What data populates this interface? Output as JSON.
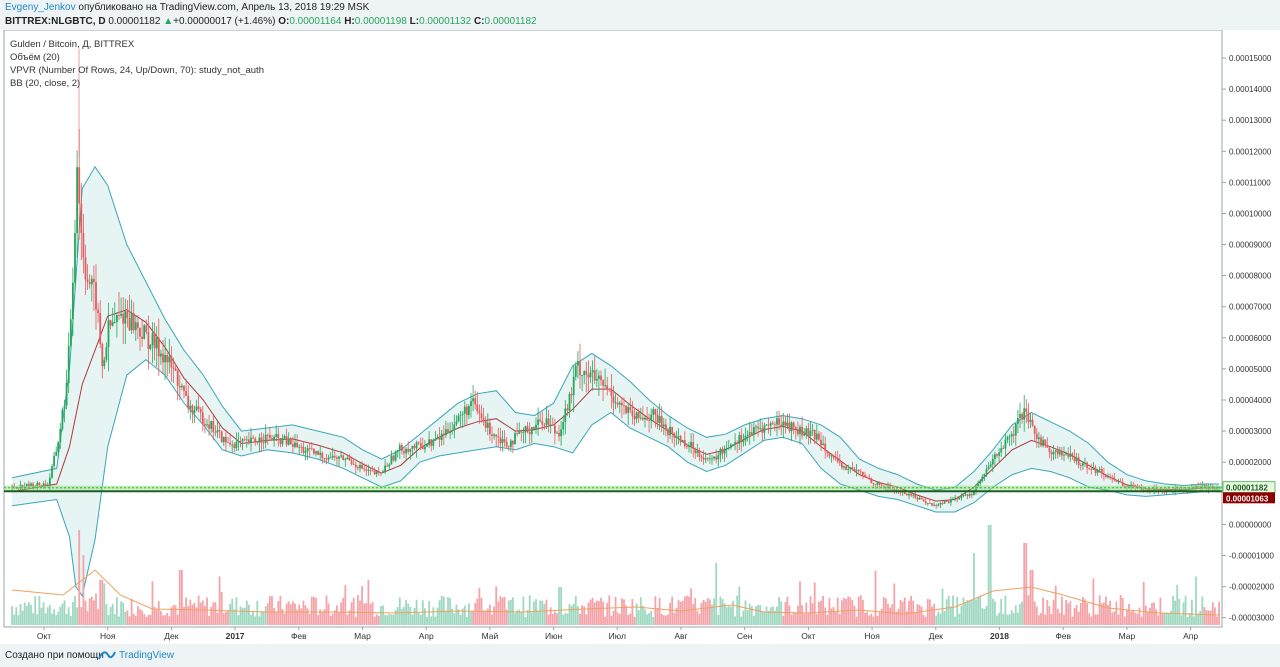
{
  "header": {
    "author": "Evgeny_Jenkov",
    "published_text": " опубликовано на TradingView.com, Апрель 13, 2018 19:29 MSK",
    "symbol": "BITTREX:NLGBTC, D",
    "last_price": "0.00001182",
    "change": "+0.00000017 (+1.46%)",
    "open_label": "O:",
    "open_value": "0.00001164",
    "high_label": "H:",
    "high_value": "0.00001198",
    "low_label": "L:",
    "low_value": "0.00001132",
    "close_label": "C:",
    "close_value": "0.00001182"
  },
  "legend": {
    "title": "Gulden / Bitcoin, Д, BITTREX",
    "volume": "Объём (20)",
    "vpvr": "VPVR (Number Of Rows, 24, Up/Down, 70): study_not_auth",
    "bb": "BB (20, close, 2)"
  },
  "footer": {
    "made_with": "Создано при помощи",
    "brand": "TradingView"
  },
  "colors": {
    "up": "#26a65b",
    "down": "#e55b5b",
    "bb_band": "#3aa6b9",
    "bb_mid": "#b03a3a",
    "bb_fill": "#e6f4f4",
    "vol_up": "#9fd8c0",
    "vol_down": "#f4a3a8",
    "vol_ma": "#f0a060",
    "support": "#2a7d2a",
    "price_tag_last": "#e8f8e0",
    "price_tag_low": "#8b0000"
  },
  "chart_data": {
    "type": "candlestick",
    "y_ticks": [
      "0.00015000",
      "0.00014000",
      "0.00013000",
      "0.00012000",
      "0.00011000",
      "0.00010000",
      "0.00009000",
      "0.00008000",
      "0.00007000",
      "0.00006000",
      "0.00005000",
      "0.00004000",
      "0.00003000",
      "0.00002000",
      "0.00000000",
      "-0.00001000",
      "-0.00002000",
      "-0.00003000"
    ],
    "y_tick_values": [
      15,
      14,
      13,
      12,
      11,
      10,
      9,
      8,
      7,
      6,
      5,
      4,
      3,
      2,
      0,
      -1,
      -2,
      -3
    ],
    "ylim": [
      -3.3,
      15.9
    ],
    "y_unit_note": "values in 1e-5 BTC",
    "x_ticks": [
      {
        "label": "Окт",
        "month": 0,
        "bold": false
      },
      {
        "label": "Ноя",
        "month": 1,
        "bold": false
      },
      {
        "label": "Дек",
        "month": 2,
        "bold": false
      },
      {
        "label": "2017",
        "month": 3,
        "bold": true
      },
      {
        "label": "Фев",
        "month": 4,
        "bold": false
      },
      {
        "label": "Мар",
        "month": 5,
        "bold": false
      },
      {
        "label": "Апр",
        "month": 6,
        "bold": false
      },
      {
        "label": "Май",
        "month": 7,
        "bold": false
      },
      {
        "label": "Июн",
        "month": 8,
        "bold": false
      },
      {
        "label": "Июл",
        "month": 9,
        "bold": false
      },
      {
        "label": "Авг",
        "month": 10,
        "bold": false
      },
      {
        "label": "Сен",
        "month": 11,
        "bold": false
      },
      {
        "label": "Окт",
        "month": 12,
        "bold": false
      },
      {
        "label": "Ноя",
        "month": 13,
        "bold": false
      },
      {
        "label": "Дек",
        "month": 14,
        "bold": false
      },
      {
        "label": "2018",
        "month": 15,
        "bold": true
      },
      {
        "label": "Фев",
        "month": 16,
        "bold": false
      },
      {
        "label": "Мар",
        "month": 17,
        "bold": false
      },
      {
        "label": "Апр",
        "month": 18,
        "bold": false
      }
    ],
    "price_path": [
      [
        -0.5,
        1.2
      ],
      [
        0.1,
        1.3
      ],
      [
        0.25,
        2.6
      ],
      [
        0.4,
        4.6
      ],
      [
        0.5,
        8.5
      ],
      [
        0.55,
        11.8
      ],
      [
        0.62,
        9.3
      ],
      [
        0.7,
        8.0
      ],
      [
        0.85,
        7.2
      ],
      [
        0.95,
        5.0
      ],
      [
        1.05,
        6.3
      ],
      [
        1.3,
        6.8
      ],
      [
        1.6,
        6.1
      ],
      [
        1.9,
        5.5
      ],
      [
        2.1,
        4.8
      ],
      [
        2.3,
        3.8
      ],
      [
        2.6,
        3.3
      ],
      [
        2.9,
        2.6
      ],
      [
        3.2,
        2.6
      ],
      [
        3.5,
        2.8
      ],
      [
        3.8,
        2.7
      ],
      [
        4.1,
        2.4
      ],
      [
        4.4,
        2.2
      ],
      [
        4.8,
        2.1
      ],
      [
        5.1,
        1.7
      ],
      [
        5.3,
        1.6
      ],
      [
        5.6,
        2.4
      ],
      [
        5.9,
        2.5
      ],
      [
        6.2,
        2.7
      ],
      [
        6.5,
        3.3
      ],
      [
        6.75,
        3.9
      ],
      [
        7.0,
        3.1
      ],
      [
        7.3,
        2.6
      ],
      [
        7.6,
        3.0
      ],
      [
        7.9,
        3.4
      ],
      [
        8.1,
        2.9
      ],
      [
        8.3,
        4.1
      ],
      [
        8.4,
        5.1
      ],
      [
        8.6,
        4.8
      ],
      [
        8.9,
        4.3
      ],
      [
        9.1,
        3.8
      ],
      [
        9.3,
        3.4
      ],
      [
        9.6,
        3.5
      ],
      [
        9.9,
        2.9
      ],
      [
        10.2,
        2.5
      ],
      [
        10.5,
        2.0
      ],
      [
        10.8,
        2.6
      ],
      [
        11.0,
        2.8
      ],
      [
        11.3,
        3.1
      ],
      [
        11.6,
        3.3
      ],
      [
        11.9,
        3.0
      ],
      [
        12.2,
        2.8
      ],
      [
        12.5,
        1.9
      ],
      [
        12.8,
        1.7
      ],
      [
        13.1,
        1.3
      ],
      [
        13.4,
        1.1
      ],
      [
        13.7,
        0.9
      ],
      [
        14.0,
        0.6
      ],
      [
        14.3,
        0.8
      ],
      [
        14.6,
        1.0
      ],
      [
        14.8,
        1.6
      ],
      [
        15.0,
        2.3
      ],
      [
        15.25,
        2.9
      ],
      [
        15.4,
        3.6
      ],
      [
        15.6,
        2.9
      ],
      [
        15.8,
        2.4
      ],
      [
        16.1,
        2.2
      ],
      [
        16.4,
        1.9
      ],
      [
        16.7,
        1.6
      ],
      [
        17.0,
        1.25
      ],
      [
        17.3,
        1.15
      ],
      [
        17.6,
        1.1
      ],
      [
        17.9,
        1.15
      ],
      [
        18.2,
        1.2
      ],
      [
        18.45,
        1.18
      ]
    ],
    "bb_upper_path": [
      [
        -0.5,
        1.5
      ],
      [
        0.2,
        1.8
      ],
      [
        0.4,
        5.0
      ],
      [
        0.6,
        10.8
      ],
      [
        0.8,
        11.5
      ],
      [
        1.0,
        10.9
      ],
      [
        1.3,
        9.0
      ],
      [
        1.6,
        7.8
      ],
      [
        1.9,
        6.6
      ],
      [
        2.2,
        5.6
      ],
      [
        2.5,
        4.8
      ],
      [
        2.8,
        3.8
      ],
      [
        3.1,
        3.0
      ],
      [
        3.5,
        3.1
      ],
      [
        3.9,
        3.2
      ],
      [
        4.3,
        3.0
      ],
      [
        4.7,
        2.8
      ],
      [
        5.0,
        2.4
      ],
      [
        5.3,
        2.1
      ],
      [
        5.6,
        2.4
      ],
      [
        5.9,
        2.9
      ],
      [
        6.2,
        3.4
      ],
      [
        6.5,
        3.9
      ],
      [
        6.8,
        4.2
      ],
      [
        7.1,
        4.3
      ],
      [
        7.4,
        3.6
      ],
      [
        7.7,
        3.5
      ],
      [
        8.0,
        3.9
      ],
      [
        8.3,
        5.1
      ],
      [
        8.6,
        5.5
      ],
      [
        8.9,
        5.1
      ],
      [
        9.2,
        4.6
      ],
      [
        9.5,
        4.0
      ],
      [
        9.8,
        3.5
      ],
      [
        10.1,
        3.1
      ],
      [
        10.4,
        2.8
      ],
      [
        10.7,
        2.9
      ],
      [
        11.0,
        3.2
      ],
      [
        11.3,
        3.4
      ],
      [
        11.6,
        3.5
      ],
      [
        11.9,
        3.4
      ],
      [
        12.2,
        3.2
      ],
      [
        12.5,
        2.8
      ],
      [
        12.8,
        2.1
      ],
      [
        13.1,
        1.8
      ],
      [
        13.4,
        1.6
      ],
      [
        13.7,
        1.3
      ],
      [
        14.0,
        1.1
      ],
      [
        14.3,
        1.2
      ],
      [
        14.6,
        1.7
      ],
      [
        14.9,
        2.4
      ],
      [
        15.2,
        3.2
      ],
      [
        15.5,
        3.6
      ],
      [
        15.8,
        3.3
      ],
      [
        16.1,
        3.0
      ],
      [
        16.4,
        2.6
      ],
      [
        16.7,
        2.0
      ],
      [
        17.0,
        1.6
      ],
      [
        17.3,
        1.4
      ],
      [
        17.6,
        1.3
      ],
      [
        17.9,
        1.25
      ],
      [
        18.2,
        1.3
      ],
      [
        18.45,
        1.3
      ]
    ],
    "bb_lower_path": [
      [
        -0.5,
        0.6
      ],
      [
        0.2,
        0.8
      ],
      [
        0.4,
        -0.4
      ],
      [
        0.5,
        -2.0
      ],
      [
        0.6,
        -2.3
      ],
      [
        0.8,
        -0.5
      ],
      [
        1.0,
        2.5
      ],
      [
        1.3,
        4.8
      ],
      [
        1.6,
        5.3
      ],
      [
        1.9,
        4.8
      ],
      [
        2.2,
        3.9
      ],
      [
        2.5,
        3.2
      ],
      [
        2.8,
        2.4
      ],
      [
        3.1,
        2.2
      ],
      [
        3.5,
        2.4
      ],
      [
        3.9,
        2.3
      ],
      [
        4.3,
        2.1
      ],
      [
        4.7,
        1.8
      ],
      [
        5.0,
        1.5
      ],
      [
        5.3,
        1.2
      ],
      [
        5.6,
        1.4
      ],
      [
        5.9,
        2.0
      ],
      [
        6.2,
        2.2
      ],
      [
        6.5,
        2.3
      ],
      [
        6.8,
        2.4
      ],
      [
        7.1,
        2.5
      ],
      [
        7.4,
        2.4
      ],
      [
        7.7,
        2.6
      ],
      [
        8.0,
        2.5
      ],
      [
        8.3,
        2.3
      ],
      [
        8.6,
        3.2
      ],
      [
        8.9,
        3.6
      ],
      [
        9.2,
        3.1
      ],
      [
        9.5,
        2.8
      ],
      [
        9.8,
        2.5
      ],
      [
        10.1,
        2.0
      ],
      [
        10.4,
        1.7
      ],
      [
        10.7,
        1.9
      ],
      [
        11.0,
        2.3
      ],
      [
        11.3,
        2.7
      ],
      [
        11.6,
        2.8
      ],
      [
        11.9,
        2.6
      ],
      [
        12.2,
        1.8
      ],
      [
        12.5,
        1.3
      ],
      [
        12.8,
        1.1
      ],
      [
        13.1,
        0.9
      ],
      [
        13.4,
        0.8
      ],
      [
        13.7,
        0.6
      ],
      [
        14.0,
        0.4
      ],
      [
        14.3,
        0.4
      ],
      [
        14.6,
        0.7
      ],
      [
        14.9,
        1.2
      ],
      [
        15.2,
        1.6
      ],
      [
        15.5,
        1.8
      ],
      [
        15.8,
        1.7
      ],
      [
        16.1,
        1.5
      ],
      [
        16.4,
        1.2
      ],
      [
        16.7,
        1.1
      ],
      [
        17.0,
        0.95
      ],
      [
        17.3,
        0.9
      ],
      [
        17.6,
        0.95
      ],
      [
        17.9,
        1.0
      ],
      [
        18.2,
        1.05
      ],
      [
        18.45,
        1.06
      ]
    ],
    "bb_mid_path": [
      [
        -0.5,
        1.05
      ],
      [
        0.2,
        1.3
      ],
      [
        0.4,
        2.5
      ],
      [
        0.6,
        4.5
      ],
      [
        0.8,
        5.6
      ],
      [
        1.0,
        6.7
      ],
      [
        1.3,
        6.9
      ],
      [
        1.6,
        6.5
      ],
      [
        1.9,
        5.7
      ],
      [
        2.2,
        4.7
      ],
      [
        2.5,
        4.0
      ],
      [
        2.8,
        3.1
      ],
      [
        3.1,
        2.6
      ],
      [
        3.5,
        2.7
      ],
      [
        3.9,
        2.75
      ],
      [
        4.3,
        2.55
      ],
      [
        4.7,
        2.3
      ],
      [
        5.0,
        1.95
      ],
      [
        5.3,
        1.65
      ],
      [
        5.6,
        1.9
      ],
      [
        5.9,
        2.45
      ],
      [
        6.2,
        2.8
      ],
      [
        6.5,
        3.1
      ],
      [
        6.8,
        3.3
      ],
      [
        7.1,
        3.4
      ],
      [
        7.4,
        3.0
      ],
      [
        7.7,
        3.05
      ],
      [
        8.0,
        3.2
      ],
      [
        8.3,
        3.7
      ],
      [
        8.6,
        4.35
      ],
      [
        8.9,
        4.35
      ],
      [
        9.2,
        3.85
      ],
      [
        9.5,
        3.4
      ],
      [
        9.8,
        3.0
      ],
      [
        10.1,
        2.55
      ],
      [
        10.4,
        2.25
      ],
      [
        10.7,
        2.4
      ],
      [
        11.0,
        2.75
      ],
      [
        11.3,
        3.05
      ],
      [
        11.6,
        3.15
      ],
      [
        11.9,
        3.0
      ],
      [
        12.2,
        2.5
      ],
      [
        12.5,
        2.05
      ],
      [
        12.8,
        1.6
      ],
      [
        13.1,
        1.35
      ],
      [
        13.4,
        1.2
      ],
      [
        13.7,
        0.95
      ],
      [
        14.0,
        0.75
      ],
      [
        14.3,
        0.8
      ],
      [
        14.6,
        1.2
      ],
      [
        14.9,
        1.8
      ],
      [
        15.2,
        2.4
      ],
      [
        15.5,
        2.7
      ],
      [
        15.8,
        2.5
      ],
      [
        16.1,
        2.25
      ],
      [
        16.4,
        1.9
      ],
      [
        16.7,
        1.55
      ],
      [
        17.0,
        1.27
      ],
      [
        17.3,
        1.15
      ],
      [
        17.6,
        1.12
      ],
      [
        17.9,
        1.12
      ],
      [
        18.2,
        1.17
      ],
      [
        18.45,
        1.18
      ]
    ],
    "volume_peaks": [
      [
        0.55,
        0.95
      ],
      [
        0.62,
        0.7
      ],
      [
        0.9,
        0.45
      ],
      [
        2.15,
        0.55
      ],
      [
        5.1,
        0.45
      ],
      [
        8.1,
        0.38
      ],
      [
        10.55,
        0.62
      ],
      [
        14.6,
        0.72
      ],
      [
        14.85,
        1.0
      ],
      [
        15.4,
        0.82
      ],
      [
        15.5,
        0.55
      ],
      [
        16.9,
        0.3
      ]
    ],
    "volume_ma_path": [
      [
        -0.5,
        0.35
      ],
      [
        0.3,
        0.3
      ],
      [
        0.8,
        0.55
      ],
      [
        1.2,
        0.3
      ],
      [
        1.7,
        0.16
      ],
      [
        2.5,
        0.15
      ],
      [
        3.5,
        0.13
      ],
      [
        4.5,
        0.13
      ],
      [
        5.5,
        0.12
      ],
      [
        6.5,
        0.14
      ],
      [
        7.5,
        0.13
      ],
      [
        8.5,
        0.16
      ],
      [
        9.3,
        0.18
      ],
      [
        10.0,
        0.14
      ],
      [
        10.8,
        0.2
      ],
      [
        11.3,
        0.13
      ],
      [
        12.0,
        0.12
      ],
      [
        12.8,
        0.15
      ],
      [
        13.5,
        0.11
      ],
      [
        14.3,
        0.18
      ],
      [
        14.9,
        0.34
      ],
      [
        15.5,
        0.38
      ],
      [
        16.0,
        0.3
      ],
      [
        16.7,
        0.17
      ],
      [
        17.5,
        0.12
      ],
      [
        18.45,
        0.1
      ]
    ],
    "support_lines": [
      1.18,
      1.063
    ],
    "price_labels": {
      "last": "0.00001182",
      "low_line": "0.00001063"
    }
  }
}
